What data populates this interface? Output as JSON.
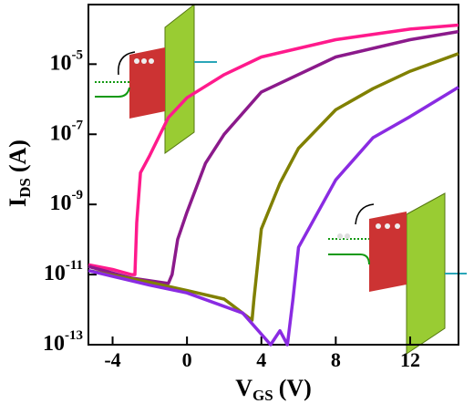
{
  "chart_data": {
    "type": "line",
    "yscale": "log",
    "x_label": {
      "text": "V",
      "subscript": "GS",
      "unit": "(V)"
    },
    "y_label": {
      "text": "I",
      "subscript": "DS",
      "unit": "(A)"
    },
    "xlim": [
      -5.3,
      14.6
    ],
    "xticks": [
      -4,
      0,
      4,
      8,
      12
    ],
    "ylim": [
      1e-13,
      0.0005
    ],
    "yticks": [
      {
        "value": 1e-13,
        "label": "10",
        "exponent": "-13"
      },
      {
        "value": 1e-11,
        "label": "10",
        "exponent": "-11"
      },
      {
        "value": 1e-09,
        "label": "10",
        "exponent": "-9"
      },
      {
        "value": 1e-07,
        "label": "10",
        "exponent": "-7"
      },
      {
        "value": 1e-05,
        "label": "10",
        "exponent": "-5"
      }
    ],
    "series": [
      {
        "color": "#ff1a8c",
        "x": [
          -5.3,
          -4,
          -3,
          -2.8,
          -2.7,
          -2.5,
          -2,
          -1,
          0,
          2,
          4,
          8,
          12,
          14.6
        ],
        "values": [
          1.9e-11,
          1.4e-11,
          1e-11,
          1e-11,
          3e-10,
          8e-09,
          2.5e-08,
          3e-07,
          1.1e-06,
          5e-06,
          1.6e-05,
          5e-05,
          0.0001,
          0.00013
        ]
      },
      {
        "color": "#8b1a8b",
        "x": [
          -5.3,
          -3,
          -1,
          -0.8,
          -0.5,
          0,
          1,
          2,
          4,
          8,
          12,
          14.6
        ],
        "values": [
          1.7e-11,
          8e-12,
          5.6e-12,
          1e-11,
          1e-10,
          6e-10,
          1.5e-08,
          1e-07,
          1.6e-06,
          1.6e-05,
          5e-05,
          8.5e-05
        ]
      },
      {
        "color": "#808000",
        "x": [
          -5.3,
          -2,
          0,
          2,
          3.5,
          3.6,
          4,
          5,
          6,
          8,
          10,
          12,
          14.6
        ],
        "values": [
          1.3e-11,
          6e-12,
          3.5e-12,
          2e-12,
          5e-13,
          2e-12,
          2e-10,
          4e-09,
          4e-08,
          5e-07,
          2e-06,
          6.3e-06,
          2e-05
        ]
      },
      {
        "color": "#8a2be2",
        "x": [
          -5.3,
          -2,
          0,
          3,
          4.5,
          5,
          5.4,
          5.7,
          6,
          8,
          10,
          12,
          14.6
        ],
        "values": [
          1.3e-11,
          5e-12,
          3e-12,
          8e-13,
          1e-13,
          2.5e-13,
          1e-13,
          2e-12,
          6e-11,
          5e-09,
          8e-08,
          3.2e-07,
          2.2e-06
        ]
      }
    ]
  }
}
